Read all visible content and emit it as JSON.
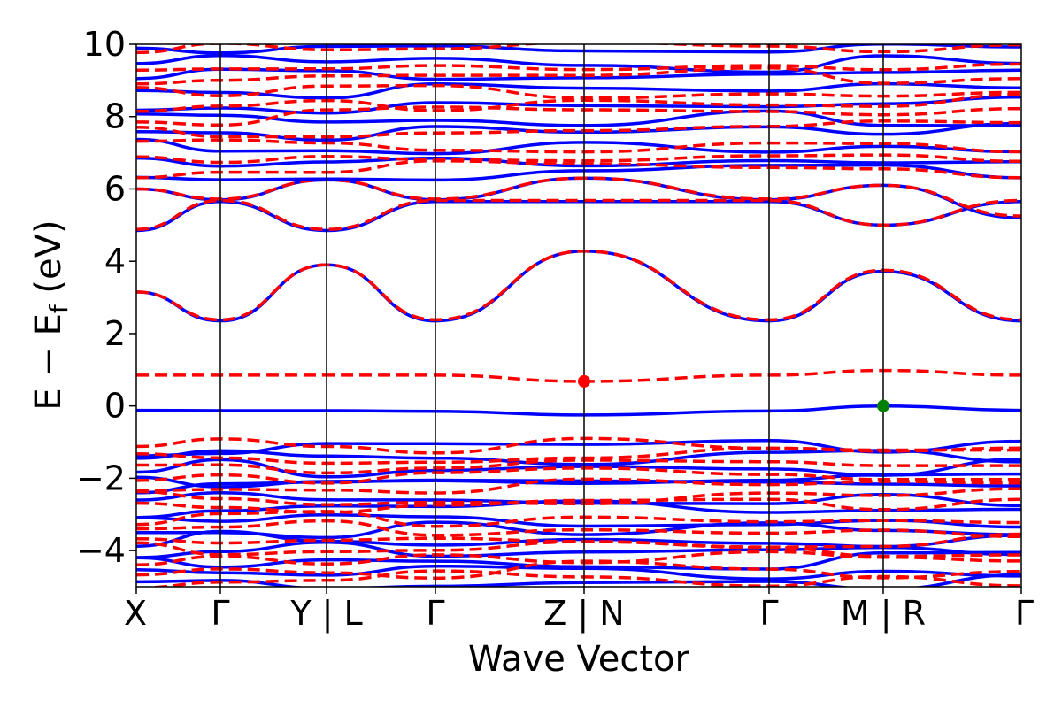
{
  "chart_data": {
    "type": "line",
    "xlabel": "Wave Vector",
    "ylabel_main": "E − E",
    "ylabel_sub": "f",
    "ylabel_unit": " (eV)",
    "ylim": [
      -5,
      10
    ],
    "yticks": [
      -4,
      -2,
      0,
      2,
      4,
      6,
      8,
      10
    ],
    "ytick_labels": [
      "−4",
      "−2",
      "0",
      "2",
      "4",
      "6",
      "8",
      "10"
    ],
    "kpath_labels": [
      "X",
      "Γ",
      "Y | L",
      "Γ",
      "Z | N",
      "Γ",
      "M | R",
      "Γ"
    ],
    "kpath_x": [
      0,
      0.095,
      0.215,
      0.338,
      0.506,
      0.715,
      0.844,
      1.0
    ],
    "colors": {
      "spin_up": "#0000ff",
      "spin_down": "#ff0000",
      "cbm_marker": "#ff0000",
      "vbm_marker": "#008000"
    },
    "series": [
      {
        "name": "",
        "style": "solid",
        "color": "#0000ff",
        "bands": [
          {
            "x": [
              0,
              0.095,
              0.215,
              0.338,
              0.506,
              0.715,
              0.844,
              1.0
            ],
            "y": [
              -0.12,
              -0.13,
              -0.13,
              -0.15,
              -0.25,
              -0.14,
              0.0,
              -0.12
            ]
          },
          {
            "x": [
              0,
              0.095,
              0.215,
              0.338,
              0.506,
              0.715,
              0.844,
              1.0
            ],
            "y": [
              3.15,
              2.35,
              3.9,
              2.35,
              4.28,
              2.35,
              3.72,
              2.35
            ]
          },
          {
            "x": [
              0,
              0.095,
              0.215,
              0.338,
              0.506,
              0.715,
              0.844,
              1.0
            ],
            "y": [
              4.85,
              5.65,
              4.85,
              5.65,
              5.65,
              5.65,
              5.0,
              5.65
            ]
          },
          {
            "x": [
              0,
              0.095,
              0.215,
              0.338,
              0.506,
              0.715,
              0.844,
              1.0
            ],
            "y": [
              6.0,
              5.7,
              6.25,
              5.7,
              6.3,
              5.7,
              6.1,
              5.2
            ]
          }
        ]
      },
      {
        "name": "",
        "style": "dashed",
        "color": "#ff0000",
        "bands": [
          {
            "x": [
              0,
              0.095,
              0.215,
              0.338,
              0.506,
              0.715,
              0.844,
              1.0
            ],
            "y": [
              0.85,
              0.85,
              0.85,
              0.85,
              0.68,
              0.85,
              0.98,
              0.85
            ]
          },
          {
            "x": [
              0,
              0.095,
              0.215,
              0.338,
              0.506,
              0.715,
              0.844,
              1.0
            ],
            "y": [
              3.15,
              2.38,
              3.9,
              2.38,
              4.28,
              2.38,
              3.75,
              2.38
            ]
          },
          {
            "x": [
              0,
              0.095,
              0.215,
              0.338,
              0.506,
              0.715,
              0.844,
              1.0
            ],
            "y": [
              4.88,
              5.68,
              4.88,
              5.68,
              5.68,
              5.68,
              5.0,
              5.68
            ]
          },
          {
            "x": [
              0,
              0.095,
              0.215,
              0.338,
              0.506,
              0.715,
              0.844,
              1.0
            ],
            "y": [
              6.0,
              5.72,
              6.25,
              5.72,
              6.3,
              5.72,
              6.1,
              5.25
            ]
          }
        ]
      }
    ],
    "markers": [
      {
        "x": 0.506,
        "y": 0.68,
        "color": "#ff0000"
      },
      {
        "x": 0.844,
        "y": 0.0,
        "color": "#008000"
      }
    ]
  }
}
